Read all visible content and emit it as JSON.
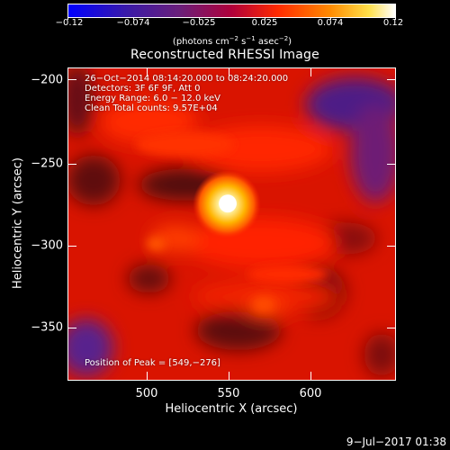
{
  "colorbar": {
    "ticks": [
      "−0.12",
      "−0.074",
      "−0.025",
      "0.025",
      "0.074",
      "0.12"
    ],
    "units_prefix": "(photons cm",
    "units_exp1": "−2",
    "units_mid1": " s",
    "units_exp2": "−1",
    "units_mid2": " asec",
    "units_exp3": "−2",
    "units_suffix": ")"
  },
  "plot": {
    "title": "Reconstructed RHESSI Image",
    "info_lines": [
      "26−Oct−2014 08:14:20.000 to 08:24:20.000",
      "Detectors: 3F 6F 9F, Att 0",
      "Energy Range: 6.0 − 12.0 keV",
      "Clean     Total counts: 9.57E+04"
    ],
    "peak_label": "Position of Peak = [549,−276]",
    "x_axis_label": "Heliocentric X (arcsec)",
    "y_axis_label": "Heliocentric Y (arcsec)",
    "x_ticks": [
      "500",
      "550",
      "600"
    ],
    "y_ticks": [
      "−200",
      "−250",
      "−300",
      "−350"
    ]
  },
  "footer": {
    "timestamp": "9−Jul−2017 01:38"
  },
  "colors": {
    "background": "#000000",
    "foreground": "#ffffff",
    "colormap": [
      "#0000ff",
      "#3a1aa8",
      "#6a1f7a",
      "#b0003a",
      "#ff2a00",
      "#ff8a00",
      "#ffe04a",
      "#ffffff"
    ]
  }
}
